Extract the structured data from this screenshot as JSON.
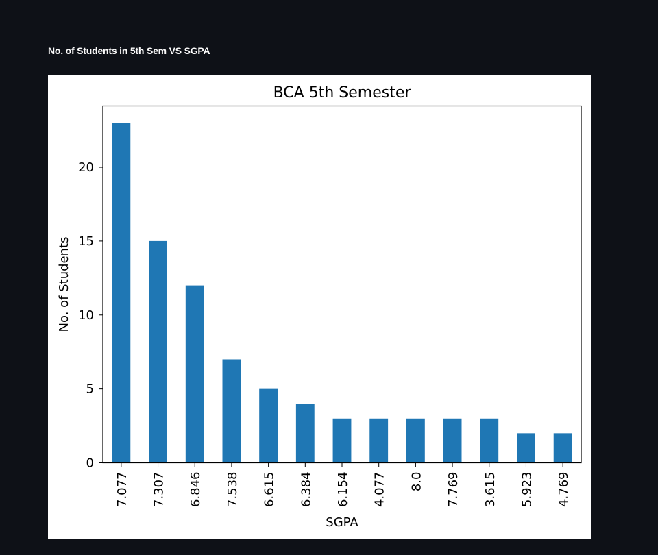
{
  "page": {
    "heading": "No. of Students in 5th Sem VS SGPA"
  },
  "colors": {
    "background": "#0e1117",
    "bar": "#1f77b4"
  },
  "chart_data": {
    "type": "bar",
    "title": "BCA 5th Semester",
    "xlabel": "SGPA",
    "ylabel": "No. of Students",
    "categories": [
      "7.077",
      "7.307",
      "6.846",
      "7.538",
      "6.615",
      "6.384",
      "6.154",
      "4.077",
      "8.0",
      "7.769",
      "3.615",
      "5.923",
      "4.769"
    ],
    "values": [
      23,
      15,
      12,
      7,
      5,
      4,
      3,
      3,
      3,
      3,
      3,
      2,
      2
    ],
    "ylim": [
      0,
      24.15
    ],
    "yticks": [
      "0",
      "5",
      "10",
      "15",
      "20"
    ],
    "grid": false,
    "legend": "none"
  }
}
